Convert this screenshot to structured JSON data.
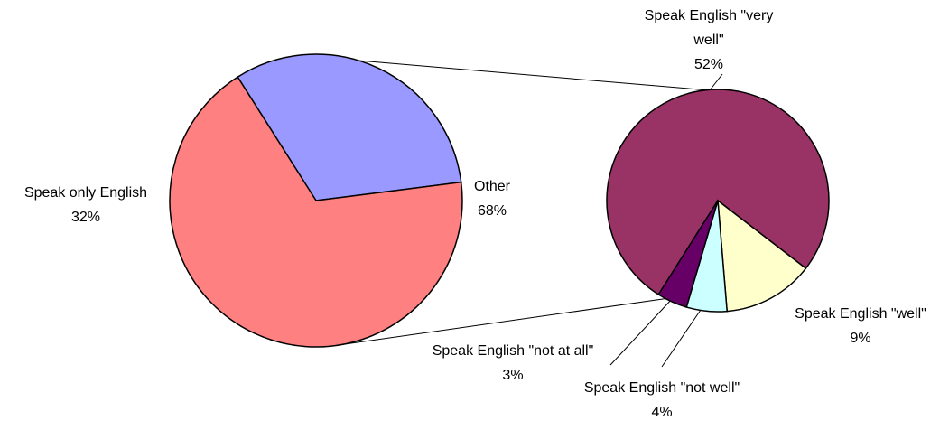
{
  "chart_data": {
    "type": "pie_of_pie",
    "categories": [
      "Speak only English",
      "Other"
    ],
    "values": [
      32,
      68
    ],
    "value_labels": [
      "32%",
      "68%"
    ],
    "colors": [
      "#9999ff",
      "#ff8080"
    ],
    "secondary": {
      "categories": [
        "Speak English \"very well\"",
        "Speak English \"well\"",
        "Speak English \"not well\"",
        "Speak English \"not at all\""
      ],
      "values": [
        52,
        9,
        4,
        3
      ],
      "value_labels": [
        "52%",
        "9%",
        "4%",
        "3%"
      ],
      "colors": [
        "#993366",
        "#ffffcc",
        "#ccffff",
        "#660066"
      ]
    }
  }
}
